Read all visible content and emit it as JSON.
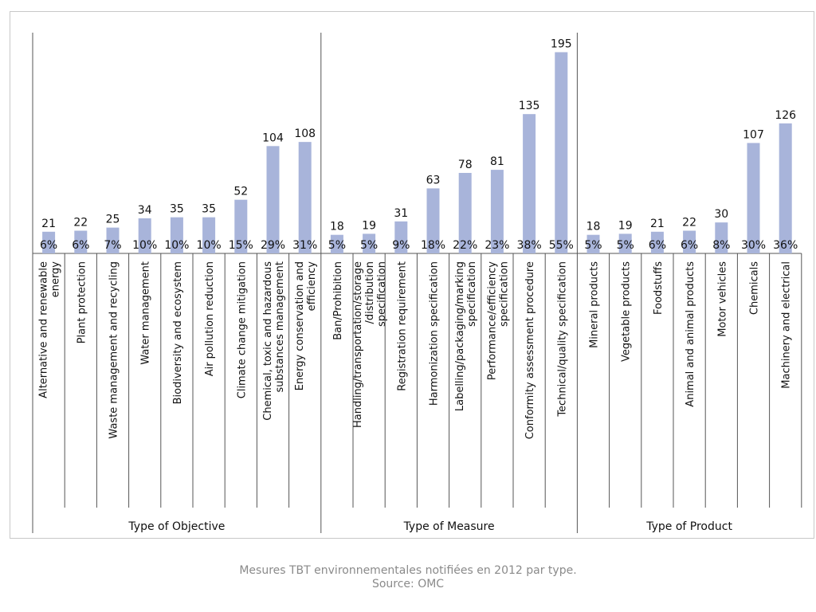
{
  "chart_data": {
    "type": "bar",
    "groups": [
      {
        "label": "Type of Objective",
        "items": [
          {
            "category": "Alternative and renewable energy",
            "value": 21,
            "percent": "6%"
          },
          {
            "category": "Plant protection",
            "value": 22,
            "percent": "6%"
          },
          {
            "category": "Waste management and recycling",
            "value": 25,
            "percent": "7%"
          },
          {
            "category": "Water management",
            "value": 34,
            "percent": "10%"
          },
          {
            "category": "Biodiversity and ecosystem",
            "value": 35,
            "percent": "10%"
          },
          {
            "category": "Air pollution reduction",
            "value": 35,
            "percent": "10%"
          },
          {
            "category": "Climate change mitigation",
            "value": 52,
            "percent": "15%"
          },
          {
            "category": "Chemical, toxic and hazardous substances management",
            "value": 104,
            "percent": "29%"
          },
          {
            "category": "Energy conservation and efficiency",
            "value": 108,
            "percent": "31%"
          }
        ]
      },
      {
        "label": "Type of Measure",
        "items": [
          {
            "category": "Ban/Prohibition",
            "value": 18,
            "percent": "5%"
          },
          {
            "category": "Handling/transportation/storage/distribution specification",
            "value": 19,
            "percent": "5%"
          },
          {
            "category": "Registration requirement",
            "value": 31,
            "percent": "9%"
          },
          {
            "category": "Harmonization specification",
            "value": 63,
            "percent": "18%"
          },
          {
            "category": "Labelling/packaging/marking specification",
            "value": 78,
            "percent": "22%"
          },
          {
            "category": "Performance/efficiency specification",
            "value": 81,
            "percent": "23%"
          },
          {
            "category": "Conformity assessment procedure",
            "value": 135,
            "percent": "38%"
          },
          {
            "category": "Technical/quality specification",
            "value": 195,
            "percent": "55%"
          }
        ]
      },
      {
        "label": "Type of Product",
        "items": [
          {
            "category": "Mineral products",
            "value": 18,
            "percent": "5%"
          },
          {
            "category": "Vegetable products",
            "value": 19,
            "percent": "5%"
          },
          {
            "category": "Foodstuffs",
            "value": 21,
            "percent": "6%"
          },
          {
            "category": "Animal and animal products",
            "value": 22,
            "percent": "6%"
          },
          {
            "category": "Motor vehicles",
            "value": 30,
            "percent": "8%"
          },
          {
            "category": "Chemicals",
            "value": 107,
            "percent": "30%"
          },
          {
            "category": "Machinery and electrical",
            "value": 126,
            "percent": "36%"
          }
        ]
      }
    ],
    "ylim": [
      0,
      200
    ],
    "bar_color": "#a8b4da",
    "grid": false,
    "title": "",
    "xlabel": "",
    "ylabel": ""
  },
  "caption": {
    "line1": "Mesures TBT environnementales notifiées en 2012 par type.",
    "line2": "Source: OMC"
  }
}
